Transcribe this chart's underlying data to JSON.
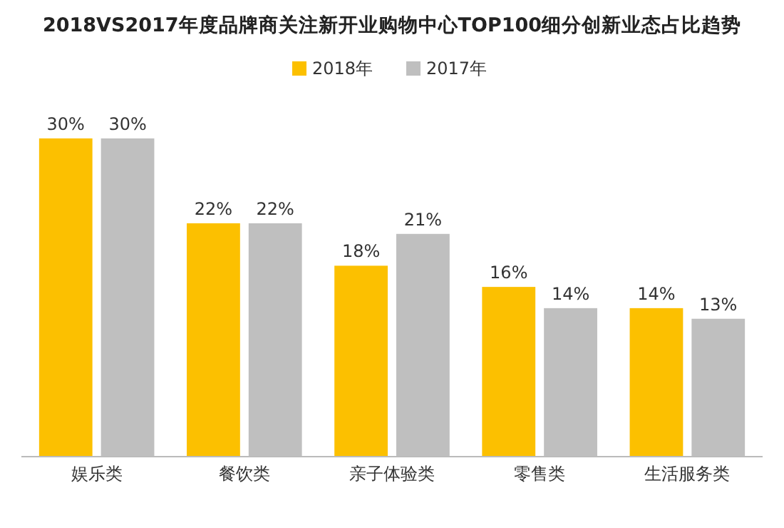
{
  "chart_data": {
    "type": "bar",
    "title": "2018VS2017年度品牌商关注新开业购物中心TOP100细分创新业态占比趋势",
    "categories": [
      "娱乐类",
      "餐饮类",
      "亲子体验类",
      "零售类",
      "生活服务类"
    ],
    "series": [
      {
        "name": "2018年",
        "color": "#fcc000",
        "values": [
          30,
          22,
          18,
          16,
          14
        ],
        "value_labels": [
          "30%",
          "22%",
          "18%",
          "16%",
          "14%"
        ]
      },
      {
        "name": "2017年",
        "color": "#bfbfbf",
        "values": [
          30,
          22,
          21,
          14,
          13
        ],
        "value_labels": [
          "30%",
          "22%",
          "21%",
          "14%",
          "13%"
        ]
      }
    ],
    "legend": "top",
    "grid": false
  }
}
